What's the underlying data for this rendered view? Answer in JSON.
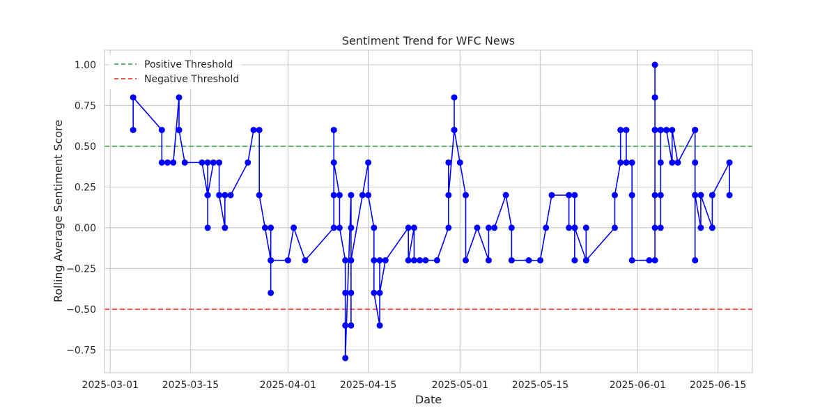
{
  "chart_data": {
    "type": "line",
    "title": "Sentiment Trend for WFC News",
    "xlabel": "Date",
    "ylabel": "Rolling Average Sentiment Score",
    "xlim": [
      "2025-02-28",
      "2025-06-21"
    ],
    "ylim": [
      -0.89,
      1.09
    ],
    "grid": true,
    "legend_position": "top-left",
    "x_tick_labels": [
      "2025-03-01",
      "2025-03-15",
      "2025-04-01",
      "2025-04-15",
      "2025-05-01",
      "2025-05-15",
      "2025-06-01",
      "2025-06-15"
    ],
    "y_tick_labels": [
      "1.00",
      "0.75",
      "0.50",
      "0.25",
      "0.00",
      "−0.25",
      "−0.50",
      "−0.75"
    ],
    "y_ticks": [
      1.0,
      0.75,
      0.5,
      0.25,
      0.0,
      -0.25,
      -0.5,
      -0.75
    ],
    "thresholds": [
      {
        "name": "Positive Threshold",
        "value": 0.5,
        "color": "#4caf50"
      },
      {
        "name": "Negative Threshold",
        "value": -0.5,
        "color": "#f44336"
      }
    ],
    "series": [
      {
        "color": "#0000ff",
        "points": [
          [
            "2025-03-05",
            0.6
          ],
          [
            "2025-03-05",
            0.8
          ],
          [
            "2025-03-10",
            0.6
          ],
          [
            "2025-03-10",
            0.4
          ],
          [
            "2025-03-11",
            0.4
          ],
          [
            "2025-03-12",
            0.4
          ],
          [
            "2025-03-13",
            0.8
          ],
          [
            "2025-03-13",
            0.6
          ],
          [
            "2025-03-13",
            0.6
          ],
          [
            "2025-03-14",
            0.4
          ],
          [
            "2025-03-17",
            0.4
          ],
          [
            "2025-03-18",
            0.2
          ],
          [
            "2025-03-18",
            0.0
          ],
          [
            "2025-03-18",
            0.4
          ],
          [
            "2025-03-18",
            0.2
          ],
          [
            "2025-03-19",
            0.4
          ],
          [
            "2025-03-20",
            0.4
          ],
          [
            "2025-03-20",
            0.2
          ],
          [
            "2025-03-21",
            0.0
          ],
          [
            "2025-03-21",
            0.2
          ],
          [
            "2025-03-22",
            0.2
          ],
          [
            "2025-03-25",
            0.4
          ],
          [
            "2025-03-26",
            0.6
          ],
          [
            "2025-03-27",
            0.6
          ],
          [
            "2025-03-27",
            0.2
          ],
          [
            "2025-03-28",
            0.0
          ],
          [
            "2025-03-29",
            -0.2
          ],
          [
            "2025-03-29",
            -0.4
          ],
          [
            "2025-03-29",
            0.0
          ],
          [
            "2025-03-29",
            -0.2
          ],
          [
            "2025-04-01",
            -0.2
          ],
          [
            "2025-04-02",
            0.0
          ],
          [
            "2025-04-02",
            0.0
          ],
          [
            "2025-04-04",
            -0.2
          ],
          [
            "2025-04-09",
            0.0
          ],
          [
            "2025-04-09",
            0.6
          ],
          [
            "2025-04-09",
            0.2
          ],
          [
            "2025-04-09",
            0.4
          ],
          [
            "2025-04-10",
            0.2
          ],
          [
            "2025-04-10",
            0.0
          ],
          [
            "2025-04-11",
            -0.2
          ],
          [
            "2025-04-11",
            -0.4
          ],
          [
            "2025-04-11",
            -0.6
          ],
          [
            "2025-04-11",
            -0.8
          ],
          [
            "2025-04-12",
            0.2
          ],
          [
            "2025-04-12",
            0.0
          ],
          [
            "2025-04-12",
            -0.6
          ],
          [
            "2025-04-12",
            -0.4
          ],
          [
            "2025-04-12",
            -0.2
          ],
          [
            "2025-04-14",
            0.2
          ],
          [
            "2025-04-15",
            0.4
          ],
          [
            "2025-04-15",
            0.2
          ],
          [
            "2025-04-16",
            0.0
          ],
          [
            "2025-04-16",
            -0.2
          ],
          [
            "2025-04-16",
            -0.4
          ],
          [
            "2025-04-17",
            -0.6
          ],
          [
            "2025-04-17",
            -0.2
          ],
          [
            "2025-04-17",
            -0.4
          ],
          [
            "2025-04-18",
            -0.2
          ],
          [
            "2025-04-22",
            0.0
          ],
          [
            "2025-04-22",
            -0.2
          ],
          [
            "2025-04-23",
            0.0
          ],
          [
            "2025-04-23",
            -0.2
          ],
          [
            "2025-04-24",
            -0.2
          ],
          [
            "2025-04-25",
            -0.2
          ],
          [
            "2025-04-27",
            -0.2
          ],
          [
            "2025-04-29",
            0.0
          ],
          [
            "2025-04-29",
            0.4
          ],
          [
            "2025-04-29",
            0.2
          ],
          [
            "2025-04-30",
            0.6
          ],
          [
            "2025-04-30",
            0.8
          ],
          [
            "2025-04-30",
            0.6
          ],
          [
            "2025-05-01",
            0.4
          ],
          [
            "2025-05-02",
            0.2
          ],
          [
            "2025-05-02",
            -0.2
          ],
          [
            "2025-05-04",
            0.0
          ],
          [
            "2025-05-06",
            -0.2
          ],
          [
            "2025-05-06",
            0.0
          ],
          [
            "2025-05-07",
            0.0
          ],
          [
            "2025-05-09",
            0.2
          ],
          [
            "2025-05-10",
            0.0
          ],
          [
            "2025-05-10",
            -0.2
          ],
          [
            "2025-05-13",
            -0.2
          ],
          [
            "2025-05-15",
            -0.2
          ],
          [
            "2025-05-16",
            0.0
          ],
          [
            "2025-05-17",
            0.2
          ],
          [
            "2025-05-20",
            0.2
          ],
          [
            "2025-05-20",
            0.0
          ],
          [
            "2025-05-21",
            0.0
          ],
          [
            "2025-05-21",
            -0.2
          ],
          [
            "2025-05-21",
            0.2
          ],
          [
            "2025-05-21",
            0.0
          ],
          [
            "2025-05-21",
            0.0
          ],
          [
            "2025-05-23",
            -0.2
          ],
          [
            "2025-05-23",
            0.0
          ],
          [
            "2025-05-23",
            -0.2
          ],
          [
            "2025-05-28",
            0.0
          ],
          [
            "2025-05-28",
            0.2
          ],
          [
            "2025-05-29",
            0.4
          ],
          [
            "2025-05-29",
            0.6
          ],
          [
            "2025-05-30",
            0.6
          ],
          [
            "2025-05-30",
            0.4
          ],
          [
            "2025-05-31",
            0.4
          ],
          [
            "2025-05-31",
            0.4
          ],
          [
            "2025-05-31",
            0.2
          ],
          [
            "2025-05-31",
            -0.2
          ],
          [
            "2025-06-03",
            -0.2
          ],
          [
            "2025-06-04",
            -0.2
          ],
          [
            "2025-06-04",
            0.0
          ],
          [
            "2025-06-04",
            0.2
          ],
          [
            "2025-06-04",
            0.6
          ],
          [
            "2025-06-04",
            0.8
          ],
          [
            "2025-06-04",
            1.0
          ],
          [
            "2025-06-04",
            0.8
          ],
          [
            "2025-06-04",
            0.6
          ],
          [
            "2025-06-05",
            0.6
          ],
          [
            "2025-06-05",
            0.2
          ],
          [
            "2025-06-05",
            0.0
          ],
          [
            "2025-06-05",
            0.4
          ],
          [
            "2025-06-05",
            0.6
          ],
          [
            "2025-06-06",
            0.6
          ],
          [
            "2025-06-06",
            0.6
          ],
          [
            "2025-06-07",
            0.4
          ],
          [
            "2025-06-07",
            0.6
          ],
          [
            "2025-06-08",
            0.4
          ],
          [
            "2025-06-11",
            0.6
          ],
          [
            "2025-06-11",
            0.6
          ],
          [
            "2025-06-11",
            0.4
          ],
          [
            "2025-06-11",
            0.2
          ],
          [
            "2025-06-11",
            -0.2
          ],
          [
            "2025-06-11",
            0.2
          ],
          [
            "2025-06-12",
            0.0
          ],
          [
            "2025-06-12",
            0.2
          ],
          [
            "2025-06-12",
            0.2
          ],
          [
            "2025-06-14",
            0.0
          ],
          [
            "2025-06-14",
            0.2
          ],
          [
            "2025-06-14",
            0.0
          ],
          [
            "2025-06-14",
            0.2
          ],
          [
            "2025-06-17",
            0.4
          ],
          [
            "2025-06-17",
            0.2
          ]
        ]
      }
    ]
  }
}
